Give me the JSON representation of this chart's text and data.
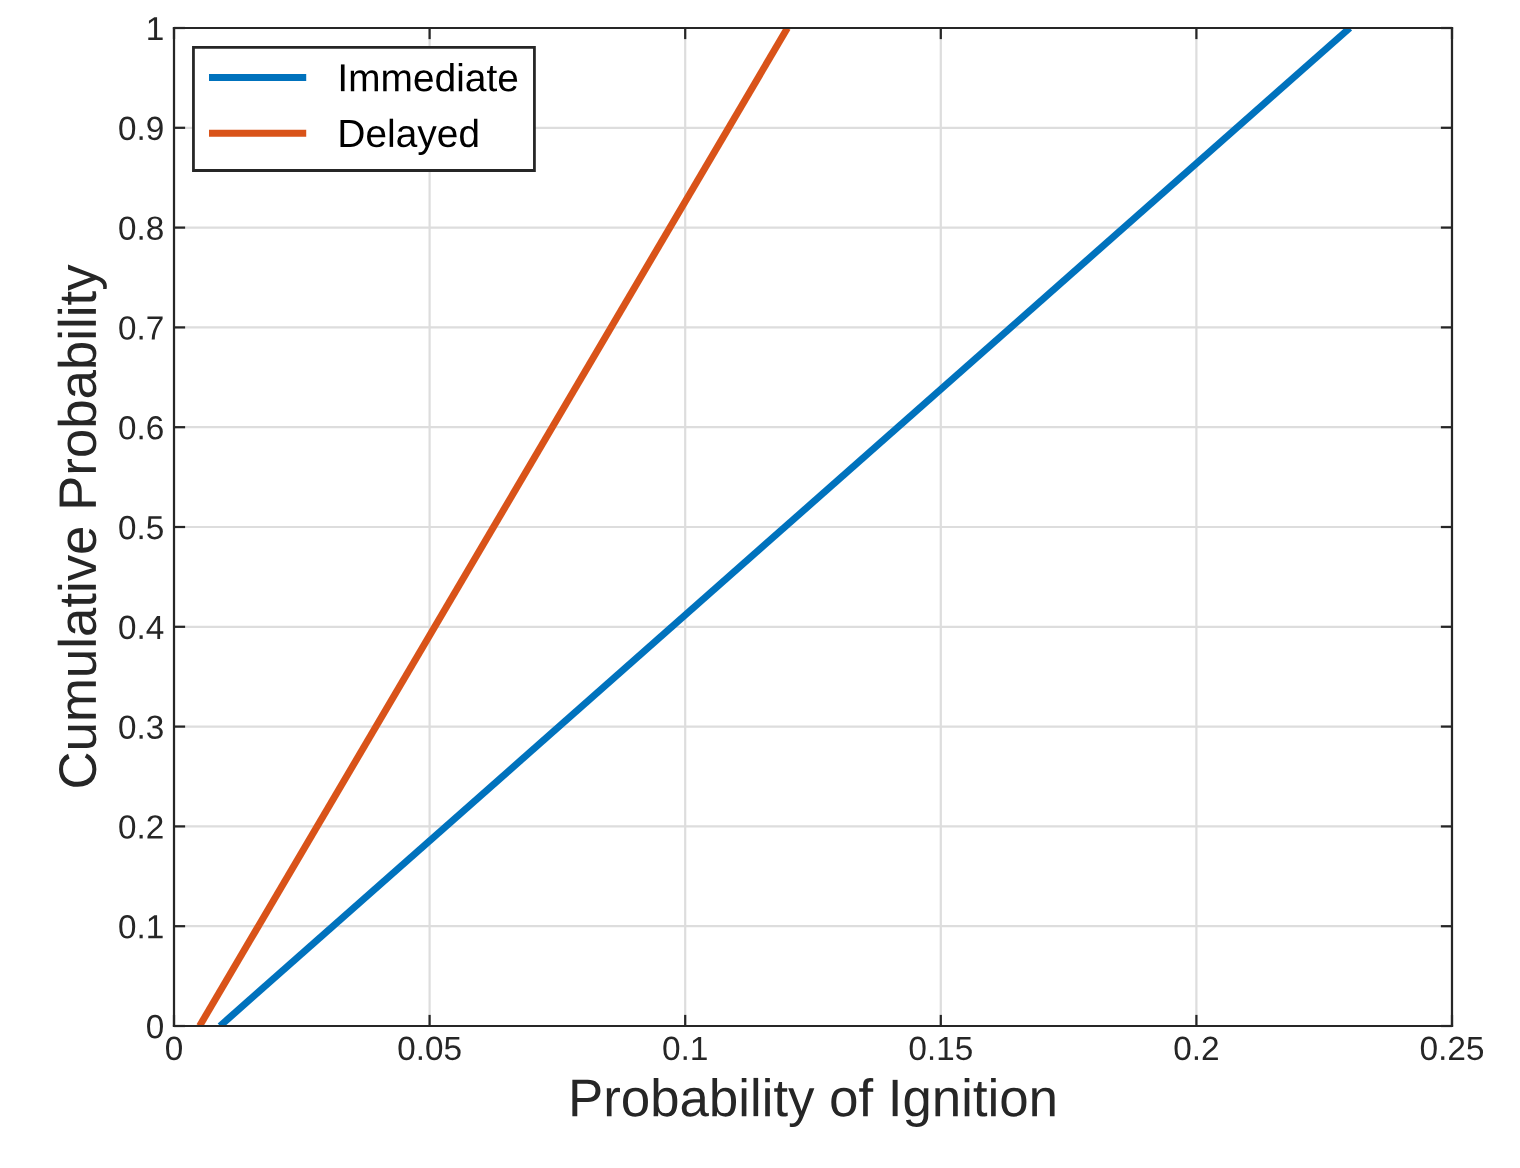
{
  "chart_data": {
    "type": "line",
    "xlabel": "Probability of Ignition",
    "ylabel": "Cumulative Probability",
    "series": [
      {
        "name": "Immediate",
        "color": "#0072bd",
        "x": [
          0.009,
          0.23
        ],
        "values": [
          0,
          1
        ]
      },
      {
        "name": "Delayed",
        "color": "#d95319",
        "x": [
          0.005,
          0.12
        ],
        "values": [
          0,
          1
        ]
      }
    ],
    "xlim": [
      0,
      0.25
    ],
    "xticks": [
      0,
      0.05,
      0.1,
      0.15,
      0.2,
      0.25
    ],
    "ylim": [
      0,
      1
    ],
    "yticks": [
      0,
      0.1,
      0.2,
      0.3,
      0.4,
      0.5,
      0.6,
      0.7,
      0.8,
      0.9,
      1
    ],
    "grid": true,
    "legend": "top left",
    "marker": "none",
    "line_style": "solid"
  }
}
